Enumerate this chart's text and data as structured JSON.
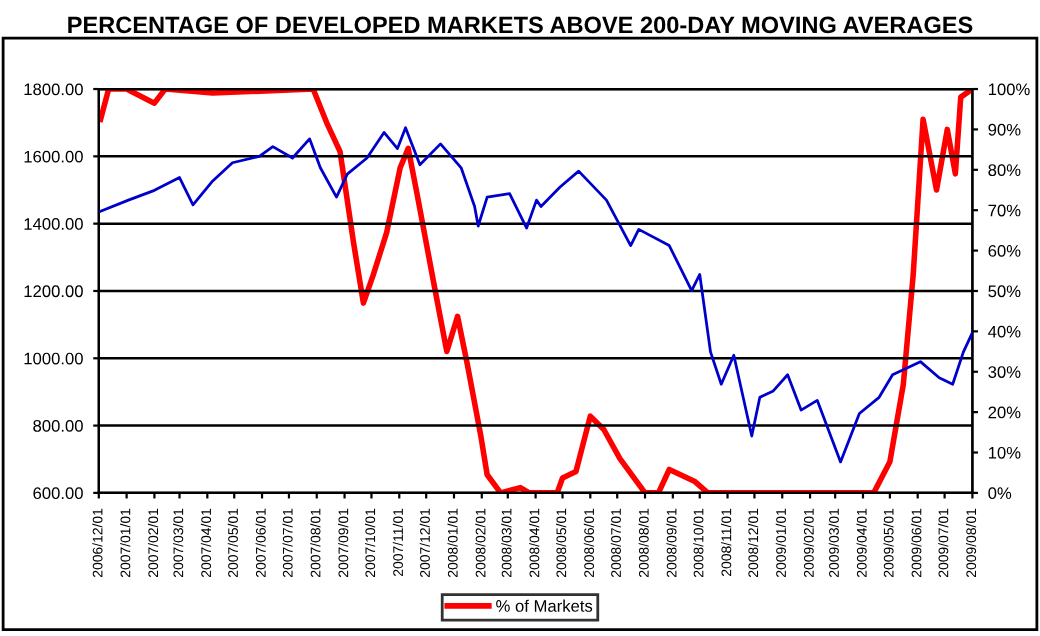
{
  "chart_data": {
    "type": "line",
    "title": "PERCENTAGE OF DEVELOPED MARKETS ABOVE 200-DAY MOVING AVERAGES",
    "xlim": [
      "2006-12-01",
      "2009-08-01"
    ],
    "xticks": [
      {
        "value": "2006-12-01",
        "label": "2006/12/01"
      },
      {
        "value": "2007-01-01",
        "label": "2007/01/01"
      },
      {
        "value": "2007-02-01",
        "label": "2007/02/01"
      },
      {
        "value": "2007-03-01",
        "label": "2007/03/01"
      },
      {
        "value": "2007-04-01",
        "label": "2007/04/01"
      },
      {
        "value": "2007-05-01",
        "label": "2007/05/01"
      },
      {
        "value": "2007-06-01",
        "label": "2007/06/01"
      },
      {
        "value": "2007-07-01",
        "label": "2007/07/01"
      },
      {
        "value": "2007-08-01",
        "label": "2007/08/01"
      },
      {
        "value": "2007-09-01",
        "label": "2007/09/01"
      },
      {
        "value": "2007-10-01",
        "label": "2007/10/01"
      },
      {
        "value": "2007-11-01",
        "label": "2007/11/01"
      },
      {
        "value": "2007-12-01",
        "label": "2007/12/01"
      },
      {
        "value": "2008-01-01",
        "label": "2008/01/01"
      },
      {
        "value": "2008-02-01",
        "label": "2008/02/01"
      },
      {
        "value": "2008-03-01",
        "label": "2008/03/01"
      },
      {
        "value": "2008-04-01",
        "label": "2008/04/01"
      },
      {
        "value": "2008-05-01",
        "label": "2008/05/01"
      },
      {
        "value": "2008-06-01",
        "label": "2008/06/01"
      },
      {
        "value": "2008-07-01",
        "label": "2008/07/01"
      },
      {
        "value": "2008-08-01",
        "label": "2008/08/01"
      },
      {
        "value": "2008-09-01",
        "label": "2008/09/01"
      },
      {
        "value": "2008-10-01",
        "label": "2008/10/01"
      },
      {
        "value": "2008-11-01",
        "label": "2008/11/01"
      },
      {
        "value": "2008-12-01",
        "label": "2008/12/01"
      },
      {
        "value": "2009-01-01",
        "label": "2009/01/01"
      },
      {
        "value": "2009-02-01",
        "label": "2009/02/01"
      },
      {
        "value": "2009-03-01",
        "label": "2009/03/01"
      },
      {
        "value": "2009-04-01",
        "label": "2009/04/01"
      },
      {
        "value": "2009-05-01",
        "label": "2009/05/01"
      },
      {
        "value": "2009-06-01",
        "label": "2009/06/01"
      },
      {
        "value": "2009-07-01",
        "label": "2009/07/01"
      },
      {
        "value": "2009-08-01",
        "label": "2009/08/01"
      }
    ],
    "ylim": [
      600,
      1800
    ],
    "yticks": [
      {
        "value": 600,
        "label": "600.00"
      },
      {
        "value": 800,
        "label": "800.00"
      },
      {
        "value": 1000,
        "label": "1000.00"
      },
      {
        "value": 1200,
        "label": "1200.00"
      },
      {
        "value": 1400,
        "label": "1400.00"
      },
      {
        "value": 1600,
        "label": "1600.00"
      },
      {
        "value": 1800,
        "label": "1800.00"
      }
    ],
    "y2lim": [
      0,
      100
    ],
    "y2ticks": [
      {
        "value": 0,
        "label": "0%"
      },
      {
        "value": 10,
        "label": "10%"
      },
      {
        "value": 20,
        "label": "20%"
      },
      {
        "value": 30,
        "label": "30%"
      },
      {
        "value": 40,
        "label": "40%"
      },
      {
        "value": 50,
        "label": "50%"
      },
      {
        "value": 60,
        "label": "60%"
      },
      {
        "value": 70,
        "label": "70%"
      },
      {
        "value": 80,
        "label": "80%"
      },
      {
        "value": 90,
        "label": "90%"
      },
      {
        "value": 100,
        "label": "100%"
      }
    ],
    "grid": "y",
    "legend": "bottom",
    "marker": "none",
    "line_style": "solid",
    "series": [
      {
        "color": "#0000cc",
        "x": [
          "2006-12-03",
          "2007-01-03",
          "2007-02-01",
          "2007-03-01",
          "2007-03-16",
          "2007-04-07",
          "2007-04-29",
          "2007-05-29",
          "2007-06-13",
          "2007-07-05",
          "2007-07-24",
          "2007-08-05",
          "2007-08-23",
          "2007-09-04",
          "2007-09-26",
          "2007-10-15",
          "2007-10-30",
          "2007-11-08",
          "2007-11-24",
          "2007-12-17",
          "2008-01-09",
          "2008-01-24",
          "2008-01-28",
          "2008-02-07",
          "2008-03-03",
          "2008-03-22",
          "2008-04-02",
          "2008-04-07",
          "2008-04-28",
          "2008-05-19",
          "2008-06-19",
          "2008-07-16",
          "2008-07-25",
          "2008-08-28",
          "2008-09-22",
          "2008-10-01",
          "2008-10-13",
          "2008-10-25",
          "2008-11-08",
          "2008-11-28",
          "2008-12-07",
          "2008-12-22",
          "2009-01-07",
          "2009-01-22",
          "2009-02-09",
          "2009-03-07",
          "2009-03-28",
          "2009-04-19",
          "2009-05-04",
          "2009-06-04",
          "2009-06-25",
          "2009-07-10",
          "2009-07-22",
          "2009-08-01"
        ],
        "values": [
          1437,
          1470,
          1499,
          1537,
          1456,
          1527,
          1581,
          1600,
          1629,
          1595,
          1652,
          1566,
          1479,
          1547,
          1595,
          1671,
          1623,
          1685,
          1575,
          1637,
          1566,
          1451,
          1393,
          1479,
          1489,
          1387,
          1470,
          1451,
          1508,
          1556,
          1470,
          1335,
          1383,
          1335,
          1201,
          1249,
          1019,
          923,
          1009,
          769,
          884,
          903,
          951,
          846,
          875,
          692,
          836,
          884,
          951,
          990,
          942,
          923,
          1019,
          1076
        ]
      },
      {
        "name": "% of Markets",
        "color": "#ff0000",
        "axis": "y2",
        "x": [
          "2006-12-03",
          "2006-12-12",
          "2007-01-01",
          "2007-02-01",
          "2007-02-13",
          "2007-04-07",
          "2007-07-28",
          "2007-08-12",
          "2007-08-27",
          "2007-09-11",
          "2007-09-22",
          "2007-10-03",
          "2007-10-18",
          "2007-11-02",
          "2007-11-11",
          "2007-11-20",
          "2007-12-09",
          "2007-12-24",
          "2008-01-05",
          "2008-01-16",
          "2008-01-31",
          "2008-02-07",
          "2008-02-22",
          "2008-03-15",
          "2008-03-25",
          "2008-04-25",
          "2008-05-01",
          "2008-05-16",
          "2008-06-01",
          "2008-06-16",
          "2008-07-04",
          "2008-08-01",
          "2008-08-16",
          "2008-08-28",
          "2008-09-25",
          "2008-10-10",
          "2009-04-13",
          "2009-05-01",
          "2009-05-16",
          "2009-05-27",
          "2009-06-07",
          "2009-06-22",
          "2009-07-04",
          "2009-07-13",
          "2009-07-19",
          "2009-08-01"
        ],
        "values": [
          92.5,
          100,
          100,
          96.5,
          100,
          99,
          100,
          91.7,
          84.5,
          62,
          47,
          54,
          64.5,
          80.5,
          85.3,
          75,
          52.5,
          35,
          43.7,
          31.7,
          14,
          4.5,
          0,
          1.3,
          0,
          0,
          3.7,
          5.3,
          19,
          15.7,
          8.5,
          0,
          0,
          5.8,
          2.9,
          0,
          0,
          7.7,
          26.9,
          54,
          92.5,
          75,
          90,
          79,
          98,
          100
        ]
      }
    ]
  }
}
